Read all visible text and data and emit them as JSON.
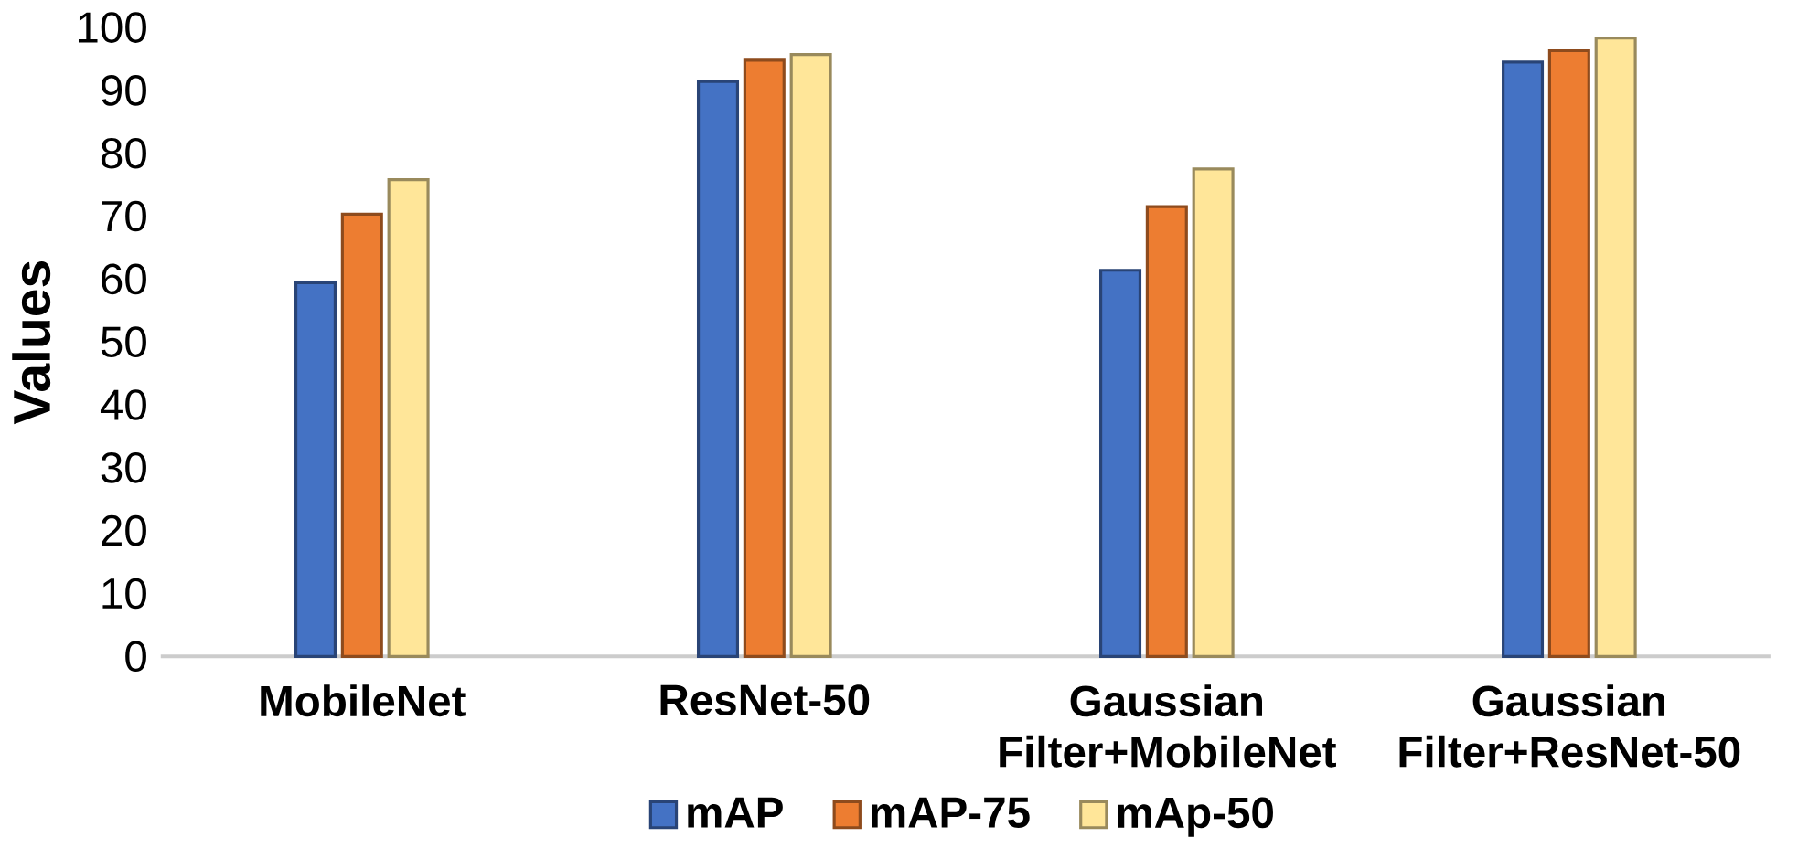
{
  "chart_data": {
    "type": "bar",
    "ylabel": "Values",
    "categories": [
      "MobileNet",
      "ResNet-50",
      "Gaussian Filter+MobileNet",
      "Gaussian Filter+ResNet-50"
    ],
    "series": [
      {
        "name": "mAP",
        "color": "#4472c4",
        "values": [
          59.4,
          91.4,
          61.4,
          94.5
        ]
      },
      {
        "name": "mAP-75",
        "color": "#ed7d31",
        "values": [
          70.3,
          94.8,
          71.5,
          96.3
        ]
      },
      {
        "name": "mAp-50",
        "color": "#ffe699",
        "values": [
          75.8,
          95.7,
          77.5,
          98.3
        ]
      }
    ],
    "ylim": [
      0,
      100
    ],
    "yticks": [
      0,
      10,
      20,
      30,
      40,
      50,
      60,
      70,
      80,
      90,
      100
    ],
    "legend": "bottom"
  }
}
